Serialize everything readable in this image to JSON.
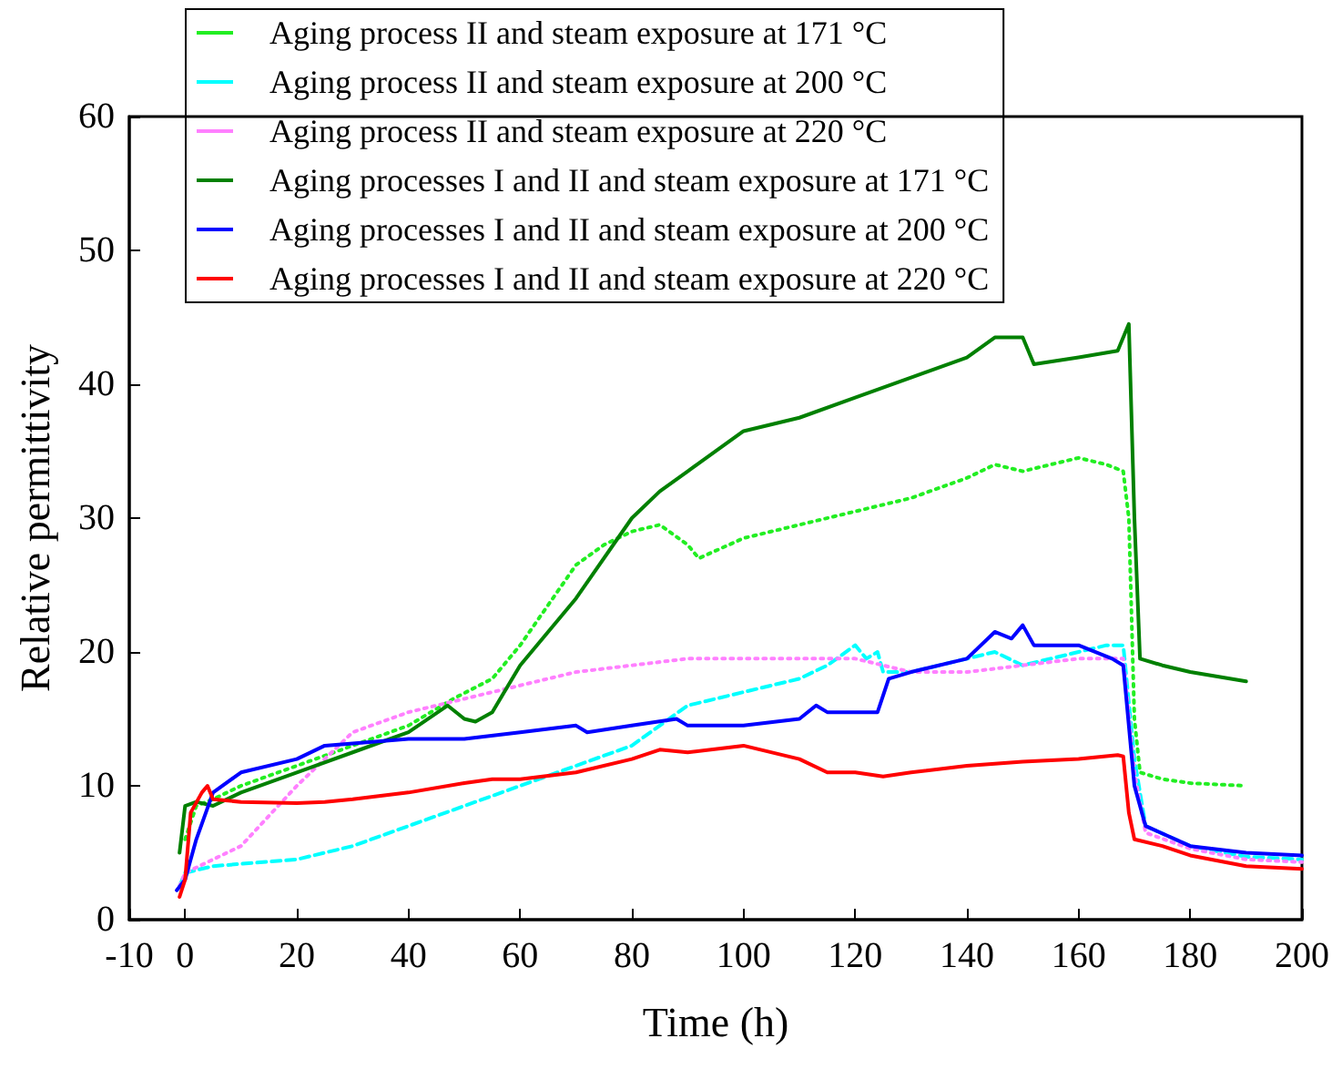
{
  "chart_data": {
    "type": "line",
    "xlabel": "Time (h)",
    "ylabel": "Relative permittivity",
    "xlim": [
      -10,
      200
    ],
    "xticks": [
      -10,
      0,
      20,
      40,
      60,
      80,
      100,
      120,
      140,
      160,
      180,
      200
    ],
    "ylim": [
      0,
      60
    ],
    "yticks": [
      0,
      10,
      20,
      30,
      40,
      50,
      60
    ],
    "grid": false,
    "legend": "top left",
    "marker": "none",
    "series": [
      {
        "name": "Aging process II and steam exposure at 171 °C",
        "color": "#22ee22",
        "line_style": "dotted",
        "x": [
          0,
          2,
          5,
          10,
          20,
          30,
          40,
          48,
          55,
          60,
          65,
          70,
          75,
          80,
          85,
          90,
          92,
          100,
          110,
          120,
          130,
          140,
          145,
          150,
          160,
          165,
          168,
          169,
          170,
          171,
          175,
          180,
          190
        ],
        "values": [
          6,
          8.5,
          9,
          10,
          11.5,
          13,
          14.5,
          16.5,
          18,
          20.5,
          23.5,
          26.5,
          28,
          29,
          29.5,
          28,
          27,
          28.5,
          29.5,
          30.5,
          31.5,
          33,
          34,
          33.5,
          34.5,
          34,
          33.5,
          30,
          15,
          11,
          10.5,
          10.2,
          10
        ]
      },
      {
        "name": "Aging process II and steam exposure at 200 °C",
        "color": "#00ffff",
        "line_style": "dashed",
        "x": [
          -1,
          0,
          5,
          20,
          30,
          40,
          50,
          60,
          70,
          80,
          90,
          100,
          110,
          115,
          120,
          122,
          124,
          125,
          130,
          140,
          145,
          150,
          160,
          165,
          168,
          170,
          172,
          180,
          190,
          200
        ],
        "values": [
          2.5,
          3.5,
          4,
          4.5,
          5.5,
          7,
          8.5,
          10,
          11.5,
          13,
          16,
          17,
          18,
          19,
          20.5,
          19.5,
          20,
          18.5,
          18.5,
          19.5,
          20,
          19,
          20,
          20.5,
          20.5,
          12,
          7,
          5.5,
          4.7,
          4.5
        ]
      },
      {
        "name": "Aging process II and steam exposure at 220 °C",
        "color": "#ff80ff",
        "line_style": "dotted",
        "x": [
          -1,
          0,
          5,
          10,
          20,
          30,
          40,
          50,
          60,
          70,
          80,
          90,
          100,
          110,
          120,
          130,
          140,
          160,
          168,
          170,
          172,
          180,
          190,
          200
        ],
        "values": [
          2.5,
          3.5,
          4.5,
          5.5,
          10,
          14,
          15.5,
          16.5,
          17.5,
          18.5,
          19,
          19.5,
          19.5,
          19.5,
          19.5,
          18.5,
          18.5,
          19.5,
          19.5,
          11,
          6.5,
          5.3,
          4.5,
          4.3
        ]
      },
      {
        "name": "Aging processes I and II and steam exposure at 171 °C",
        "color": "#008000",
        "line_style": "solid",
        "x": [
          -1,
          0,
          2,
          5,
          10,
          20,
          30,
          40,
          47,
          50,
          52,
          55,
          60,
          70,
          80,
          85,
          90,
          100,
          110,
          120,
          130,
          140,
          145,
          150,
          152,
          160,
          167,
          169,
          170,
          171,
          175,
          180,
          190
        ],
        "values": [
          5,
          8.5,
          8.8,
          8.5,
          9.5,
          11,
          12.5,
          14,
          16,
          15,
          14.8,
          15.5,
          19,
          24,
          30,
          32,
          33.5,
          36.5,
          37.5,
          39,
          40.5,
          42,
          43.5,
          43.5,
          41.5,
          42,
          42.5,
          44.5,
          30,
          19.5,
          19,
          18.5,
          17.8
        ]
      },
      {
        "name": "Aging processes I and II and steam exposure at 200 °C",
        "color": "#0000ff",
        "line_style": "solid",
        "x": [
          -1.5,
          0,
          2,
          5,
          10,
          20,
          25,
          40,
          50,
          60,
          70,
          72,
          80,
          88,
          90,
          100,
          110,
          113,
          115,
          124,
          126,
          130,
          140,
          145,
          148,
          150,
          152,
          160,
          166,
          168,
          170,
          172,
          180,
          190,
          200
        ],
        "values": [
          2.2,
          3,
          6,
          9.5,
          11,
          12,
          13,
          13.5,
          13.5,
          14,
          14.5,
          14,
          14.5,
          15,
          14.5,
          14.5,
          15,
          16,
          15.5,
          15.5,
          18,
          18.5,
          19.5,
          21.5,
          21,
          22,
          20.5,
          20.5,
          19.5,
          19,
          10,
          7,
          5.5,
          5,
          4.8
        ]
      },
      {
        "name": "Aging processes I and II and steam exposure at 220 °C",
        "color": "#ff0000",
        "line_style": "solid",
        "x": [
          -1,
          0,
          1,
          3,
          4,
          5,
          10,
          20,
          25,
          30,
          40,
          50,
          55,
          60,
          70,
          80,
          85,
          90,
          100,
          110,
          115,
          120,
          125,
          130,
          140,
          150,
          160,
          167,
          168,
          169,
          170,
          175,
          180,
          190,
          200
        ],
        "values": [
          1.7,
          3,
          8,
          9.5,
          10,
          9,
          8.8,
          8.7,
          8.8,
          9,
          9.5,
          10.2,
          10.5,
          10.5,
          11,
          12,
          12.7,
          12.5,
          13,
          12,
          11,
          11,
          10.7,
          11,
          11.5,
          11.8,
          12,
          12.3,
          12.2,
          8,
          6,
          5.5,
          4.8,
          4,
          3.8
        ]
      }
    ]
  }
}
